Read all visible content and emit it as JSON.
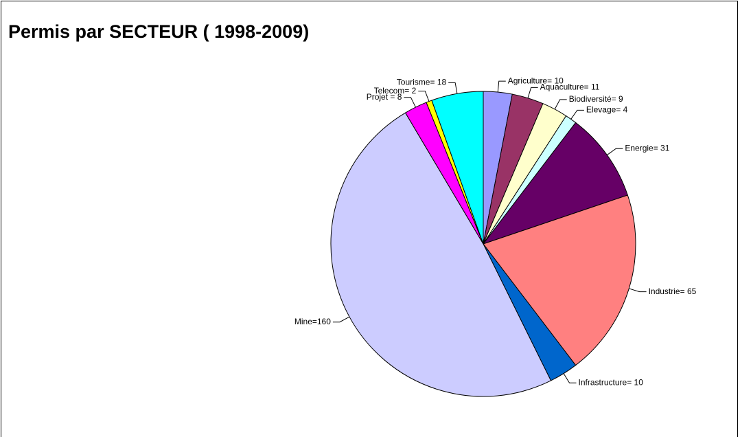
{
  "chart_data": {
    "type": "pie",
    "title": "Permis par SECTEUR ( 1998-2009)",
    "values": [
      10,
      11,
      9,
      4,
      31,
      65,
      10,
      160,
      8,
      2,
      18
    ],
    "value_labels": [
      "Agriculture= 10",
      "Aquaculture= 11",
      "Biodiversité= 9",
      "Elevage= 4",
      "Energie= 31",
      "Industrie= 65",
      "Infrastructure= 10",
      "Mine=160",
      "Projet = 8",
      "Telecom= 2",
      "Tourisme= 18"
    ],
    "colors": [
      "#9999ff",
      "#993366",
      "#ffffcc",
      "#ccffff",
      "#660066",
      "#ff8080",
      "#0066cc",
      "#ccccff",
      "#ff00ff",
      "#ffff00",
      "#00ffff"
    ]
  }
}
